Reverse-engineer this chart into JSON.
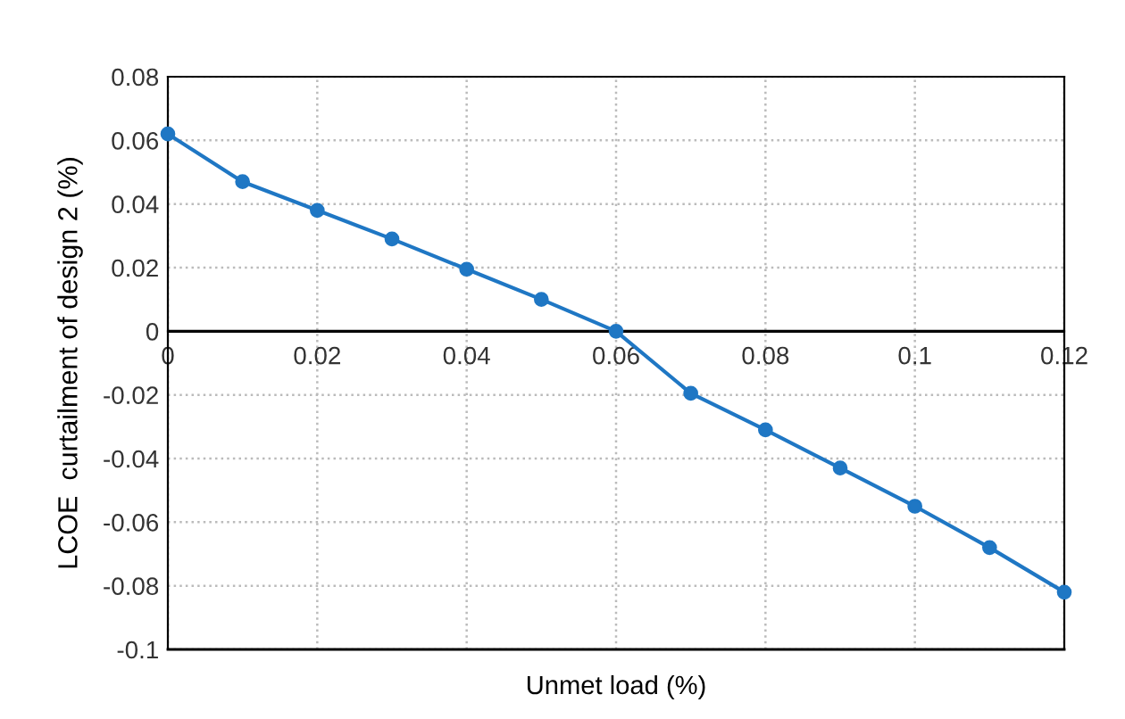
{
  "chart_data": {
    "type": "line",
    "xlabel": "Unmet load (%)",
    "ylabel": "LCOE  curtailment of design 2 (%)",
    "x": [
      0,
      0.01,
      0.02,
      0.03,
      0.04,
      0.05,
      0.06,
      0.07,
      0.08,
      0.09,
      0.1,
      0.11,
      0.12
    ],
    "series": [
      {
        "color": "#1f77c4",
        "values": [
          0.062,
          0.047,
          0.038,
          0.029,
          0.0195,
          0.01,
          0,
          -0.0195,
          -0.031,
          -0.043,
          -0.055,
          -0.068,
          -0.082
        ]
      }
    ],
    "xlim": [
      0,
      0.12
    ],
    "xticks": [
      {
        "value": 0,
        "label": "0"
      },
      0.02,
      0.04,
      0.06,
      0.08,
      0.1,
      0.12
    ],
    "ylim": [
      -0.1,
      0.08
    ],
    "yticks": [
      -0.1,
      -0.08,
      -0.06,
      -0.04,
      -0.02,
      {
        "value": 0,
        "label": "0"
      },
      0.02,
      0.04,
      0.06,
      0.08
    ],
    "grid": true,
    "marker": "circle",
    "line_style": "solid"
  }
}
